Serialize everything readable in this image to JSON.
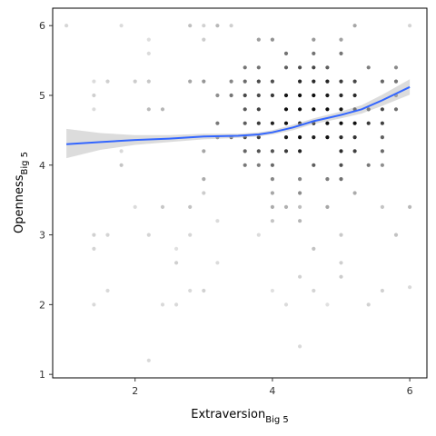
{
  "chart_data": {
    "type": "scatter",
    "xlabel": "Extraversion",
    "xlabel_subscript": "Big 5",
    "ylabel": "Openness",
    "ylabel_subscript": "Big 5",
    "xlim": [
      0.8,
      6.25
    ],
    "ylim": [
      0.95,
      6.25
    ],
    "x_ticks": [
      2,
      4,
      6
    ],
    "x_tick_labels": [
      "2",
      "4",
      "6"
    ],
    "y_ticks": [
      1,
      2,
      3,
      4,
      5,
      6
    ],
    "y_tick_labels": [
      "1",
      "2",
      "3",
      "4",
      "5",
      "6"
    ],
    "grid": false,
    "points_color": "#000000",
    "point_grid": {
      "x_min": 1.0,
      "x_max": 6.0,
      "x_step": 0.2,
      "y_min": 2.0,
      "y_max": 6.0,
      "y_step": 0.2,
      "note_density_peak": [
        4.6,
        4.7
      ]
    },
    "outliers": [
      {
        "x": 2.2,
        "y": 1.2
      },
      {
        "x": 4.4,
        "y": 1.4
      },
      {
        "x": 1.4,
        "y": 2.0
      },
      {
        "x": 1.6,
        "y": 2.2
      },
      {
        "x": 2.4,
        "y": 2.0
      },
      {
        "x": 2.6,
        "y": 2.0
      },
      {
        "x": 6.0,
        "y": 2.25
      }
    ],
    "smooth": {
      "color": "#3366ff",
      "band_color": "#bfbfbf",
      "points": [
        {
          "x": 1.0,
          "y": 4.3,
          "lo": 4.1,
          "hi": 4.52
        },
        {
          "x": 1.5,
          "y": 4.33,
          "lo": 4.22,
          "hi": 4.46
        },
        {
          "x": 2.0,
          "y": 4.36,
          "lo": 4.29,
          "hi": 4.43
        },
        {
          "x": 2.5,
          "y": 4.38,
          "lo": 4.33,
          "hi": 4.43
        },
        {
          "x": 3.0,
          "y": 4.41,
          "lo": 4.37,
          "hi": 4.45
        },
        {
          "x": 3.5,
          "y": 4.42,
          "lo": 4.39,
          "hi": 4.45
        },
        {
          "x": 3.8,
          "y": 4.44,
          "lo": 4.41,
          "hi": 4.47
        },
        {
          "x": 4.0,
          "y": 4.47,
          "lo": 4.44,
          "hi": 4.5
        },
        {
          "x": 4.3,
          "y": 4.54,
          "lo": 4.5,
          "hi": 4.58
        },
        {
          "x": 4.6,
          "y": 4.63,
          "lo": 4.59,
          "hi": 4.67
        },
        {
          "x": 5.0,
          "y": 4.72,
          "lo": 4.67,
          "hi": 4.77
        },
        {
          "x": 5.3,
          "y": 4.8,
          "lo": 4.74,
          "hi": 4.86
        },
        {
          "x": 5.6,
          "y": 4.93,
          "lo": 4.85,
          "hi": 5.01
        },
        {
          "x": 6.0,
          "y": 5.12,
          "lo": 5.01,
          "hi": 5.23
        }
      ]
    }
  }
}
